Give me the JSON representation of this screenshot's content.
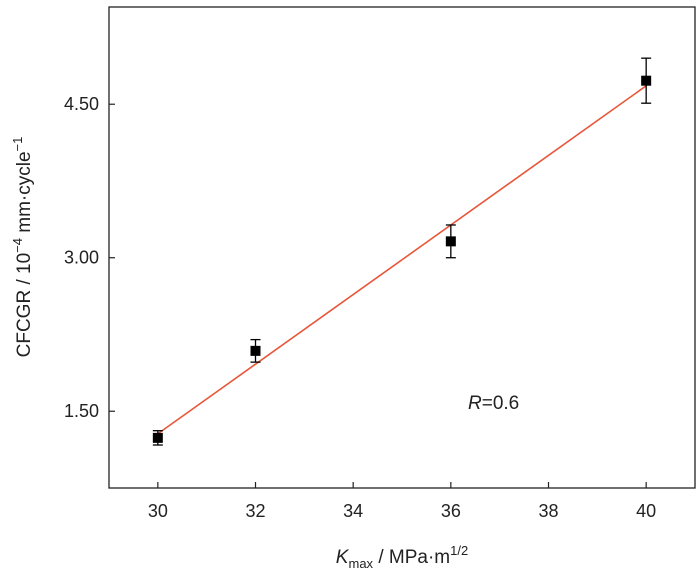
{
  "chart_data": {
    "type": "scatter",
    "title": "",
    "x": [
      30,
      32,
      36,
      40
    ],
    "y": [
      1.24,
      2.09,
      3.16,
      4.73
    ],
    "yerr": [
      0.07,
      0.11,
      0.16,
      0.22
    ],
    "xlim": [
      29,
      41
    ],
    "ylim": [
      0.75,
      5.45
    ],
    "xticks": [
      30,
      32,
      34,
      36,
      38,
      40
    ],
    "xtick_labels": [
      "30",
      "32",
      "34",
      "36",
      "38",
      "40"
    ],
    "yticks": [
      1.5,
      3.0,
      4.5
    ],
    "ytick_labels": [
      "1.50",
      "3.00",
      "4.50"
    ],
    "xlabel": {
      "symbol": "K",
      "subscript": "max",
      "rest": " / MPa·m",
      "superscript": "1/2"
    },
    "ylabel": {
      "main": "CFCGR / 10",
      "exp1": "−4",
      "mid": " mm·cycle",
      "exp2": "−1"
    },
    "fit_line": {
      "x": [
        30,
        40
      ],
      "y": [
        1.28,
        4.68
      ],
      "color": "#e8573a"
    },
    "annotation": {
      "symbol": "R",
      "text": "=0.6"
    },
    "grid": false,
    "marker_color": "#000000"
  }
}
